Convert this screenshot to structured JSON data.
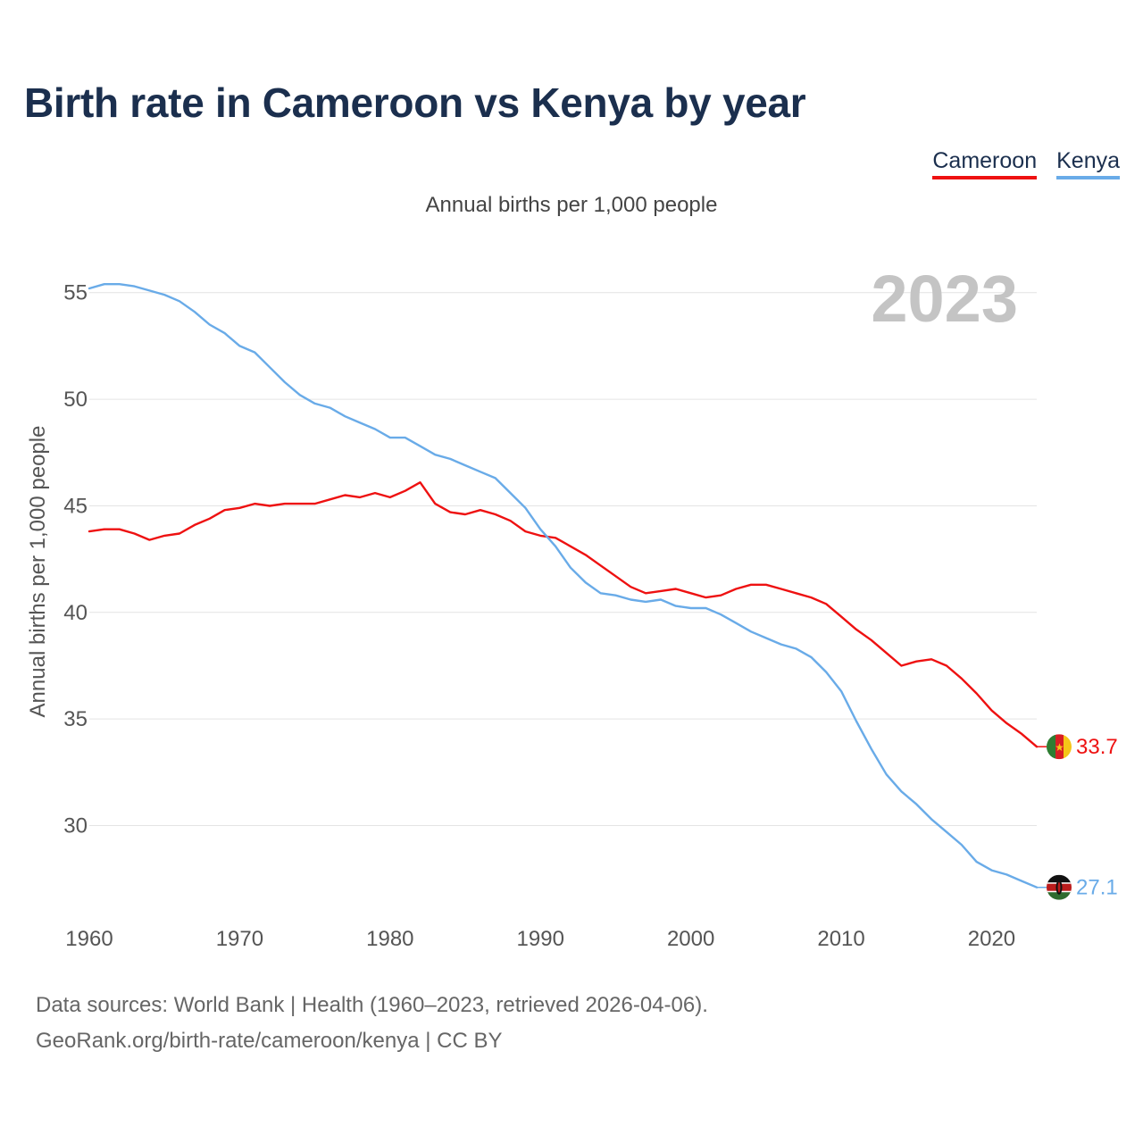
{
  "header": {
    "title": "Birth rate in Cameroon vs Kenya by year",
    "subtitle": "Annual births per 1,000 people"
  },
  "legend": [
    {
      "label": "Cameroon",
      "color": "#ee1111"
    },
    {
      "label": "Kenya",
      "color": "#69abe8"
    }
  ],
  "footer": {
    "source_line1": "Data sources: World Bank | Health (1960–2023, retrieved 2026-04-06).",
    "source_line2": "GeoRank.org/birth-rate/cameroon/kenya | CC BY"
  },
  "chart_data": {
    "type": "line",
    "title": "Birth rate in Cameroon vs Kenya by year",
    "subtitle": "Annual births per 1,000 people",
    "ylabel": "Annual births per 1,000 people",
    "xlabel": "",
    "year_label": "2023",
    "xlim": [
      1960,
      2023
    ],
    "ylim": [
      26,
      57
    ],
    "x_ticks": [
      1960,
      1970,
      1980,
      1990,
      2000,
      2010,
      2020
    ],
    "y_ticks": [
      30,
      35,
      40,
      45,
      50,
      55
    ],
    "grid": true,
    "legend_position": "top-right",
    "x": [
      1960,
      1961,
      1962,
      1963,
      1964,
      1965,
      1966,
      1967,
      1968,
      1969,
      1970,
      1971,
      1972,
      1973,
      1974,
      1975,
      1976,
      1977,
      1978,
      1979,
      1980,
      1981,
      1982,
      1983,
      1984,
      1985,
      1986,
      1987,
      1988,
      1989,
      1990,
      1991,
      1992,
      1993,
      1994,
      1995,
      1996,
      1997,
      1998,
      1999,
      2000,
      2001,
      2002,
      2003,
      2004,
      2005,
      2006,
      2007,
      2008,
      2009,
      2010,
      2011,
      2012,
      2013,
      2014,
      2015,
      2016,
      2017,
      2018,
      2019,
      2020,
      2021,
      2022,
      2023
    ],
    "series": [
      {
        "name": "Cameroon",
        "color": "#ee1111",
        "end_label": "33.7",
        "values": [
          43.8,
          43.9,
          43.9,
          43.7,
          43.4,
          43.6,
          43.7,
          44.1,
          44.4,
          44.8,
          44.9,
          45.1,
          45.0,
          45.1,
          45.1,
          45.1,
          45.3,
          45.5,
          45.4,
          45.6,
          45.4,
          45.7,
          46.1,
          45.1,
          44.7,
          44.6,
          44.8,
          44.6,
          44.3,
          43.8,
          43.6,
          43.5,
          43.1,
          42.7,
          42.2,
          41.7,
          41.2,
          40.9,
          41.0,
          41.1,
          40.9,
          40.7,
          40.8,
          41.1,
          41.3,
          41.3,
          41.1,
          40.9,
          40.7,
          40.4,
          39.8,
          39.2,
          38.7,
          38.1,
          37.5,
          37.7,
          37.8,
          37.5,
          36.9,
          36.2,
          35.4,
          34.8,
          34.3,
          33.7
        ]
      },
      {
        "name": "Kenya",
        "color": "#69abe8",
        "end_label": "27.1",
        "values": [
          55.2,
          55.4,
          55.4,
          55.3,
          55.1,
          54.9,
          54.6,
          54.1,
          53.5,
          53.1,
          52.5,
          52.2,
          51.5,
          50.8,
          50.2,
          49.8,
          49.6,
          49.2,
          48.9,
          48.6,
          48.2,
          48.2,
          47.8,
          47.4,
          47.2,
          46.9,
          46.6,
          46.3,
          45.6,
          44.9,
          43.9,
          43.1,
          42.1,
          41.4,
          40.9,
          40.8,
          40.6,
          40.5,
          40.6,
          40.3,
          40.2,
          40.2,
          39.9,
          39.5,
          39.1,
          38.8,
          38.5,
          38.3,
          37.9,
          37.2,
          36.3,
          34.9,
          33.6,
          32.4,
          31.6,
          31.0,
          30.3,
          29.7,
          29.1,
          28.3,
          27.9,
          27.7,
          27.4,
          27.1
        ]
      }
    ]
  }
}
